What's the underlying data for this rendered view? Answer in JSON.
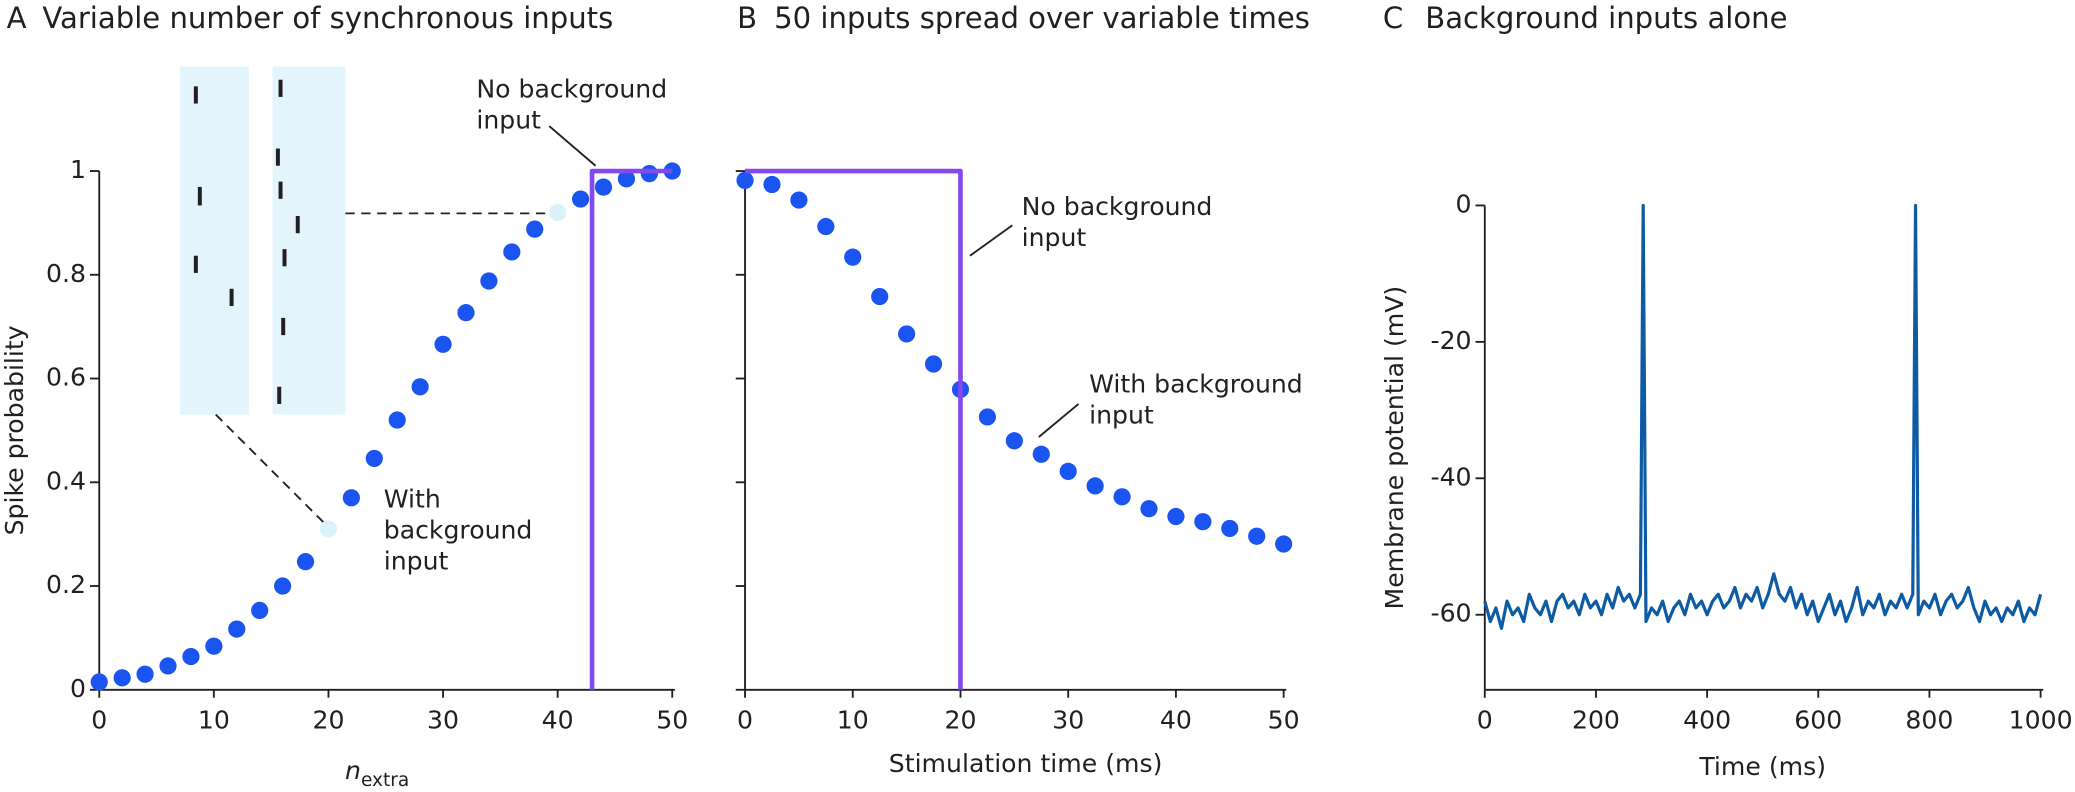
{
  "chart_data": [
    {
      "type": "scatter",
      "panel": "A",
      "title": "Variable number of synchronous inputs",
      "xlabel": "n",
      "xlabel_sub": "extra",
      "ylabel": "Spike probability",
      "xlim": [
        0,
        50
      ],
      "ylim": [
        0,
        1
      ],
      "xticks": [
        0,
        10,
        20,
        30,
        40,
        50
      ],
      "yticks": [
        0,
        0.2,
        0.4,
        0.6,
        0.8,
        1
      ],
      "series": [
        {
          "kind": "scatter",
          "color": "#1a55f2",
          "point_colors": [
            "#1a55f2",
            "#1a55f2",
            "#1a55f2",
            "#1a55f2",
            "#1a55f2",
            "#1a55f2",
            "#1a55f2",
            "#1a55f2",
            "#1a55f2",
            "#1a55f2",
            "#dcf2fb",
            "#1a55f2",
            "#1a55f2",
            "#1a55f2",
            "#1a55f2",
            "#1a55f2",
            "#1a55f2",
            "#1a55f2",
            "#1a55f2",
            "#1a55f2",
            "#dcf2fb",
            "#1a55f2",
            "#1a55f2",
            "#1a55f2",
            "#1a55f2",
            "#1a55f2"
          ],
          "x": [
            0,
            2,
            4,
            6,
            8,
            10,
            12,
            14,
            16,
            18,
            20,
            22,
            24,
            26,
            28,
            30,
            32,
            34,
            36,
            38,
            40,
            42,
            44,
            46,
            48,
            50
          ],
          "values": [
            0.015,
            0.023,
            0.03,
            0.046,
            0.064,
            0.084,
            0.117,
            0.153,
            0.2,
            0.247,
            0.31,
            0.37,
            0.446,
            0.52,
            0.584,
            0.666,
            0.727,
            0.788,
            0.844,
            0.888,
            0.92,
            0.946,
            0.969,
            0.985,
            0.995,
            1.0
          ]
        },
        {
          "kind": "line",
          "color": "#8348ee",
          "x": [
            43,
            43,
            50
          ],
          "values": [
            0,
            1,
            1
          ]
        }
      ],
      "annotations": [
        {
          "lines": [
            "No background",
            "input"
          ]
        },
        {
          "lines": [
            "With",
            "background",
            "input"
          ]
        }
      ]
    },
    {
      "type": "scatter",
      "panel": "B",
      "title": "50 inputs spread over variable times",
      "xlabel": "Stimulation time (ms)",
      "ytick_labels": false,
      "xlim": [
        0,
        50
      ],
      "ylim": [
        0,
        1
      ],
      "xticks": [
        0,
        10,
        20,
        30,
        40,
        50
      ],
      "yticks": [
        0,
        0.2,
        0.4,
        0.6,
        0.8,
        1
      ],
      "series": [
        {
          "kind": "scatter",
          "color": "#1a55f2",
          "x": [
            0,
            2.5,
            5,
            7.5,
            10,
            12.5,
            15,
            17.5,
            20,
            22.5,
            25,
            27.5,
            30,
            32.5,
            35,
            37.5,
            40,
            42.5,
            45,
            47.5,
            50
          ],
          "values": [
            0.982,
            0.974,
            0.944,
            0.893,
            0.834,
            0.758,
            0.686,
            0.628,
            0.579,
            0.526,
            0.48,
            0.454,
            0.421,
            0.393,
            0.372,
            0.349,
            0.334,
            0.324,
            0.311,
            0.296,
            0.281
          ]
        },
        {
          "kind": "line",
          "color": "#8348ee",
          "x": [
            0,
            20,
            20
          ],
          "values": [
            1,
            1,
            0
          ]
        }
      ],
      "annotations": [
        {
          "lines": [
            "No background",
            "input"
          ]
        },
        {
          "lines": [
            "With background",
            "input"
          ]
        }
      ]
    },
    {
      "type": "line",
      "panel": "C",
      "title": "Background inputs alone",
      "xlabel": "Time (ms)",
      "ylabel": "Membrane potential (mV)",
      "xlim": [
        0,
        1000
      ],
      "ylim": [
        -71,
        0
      ],
      "xticks": [
        0,
        200,
        400,
        600,
        800,
        1000
      ],
      "yticks": [
        0,
        -20,
        -40,
        -60
      ],
      "series": [
        {
          "kind": "line",
          "color": "#0d5ba3",
          "x": [
            0,
            10,
            20,
            30,
            40,
            50,
            60,
            70,
            80,
            90,
            100,
            110,
            120,
            130,
            140,
            150,
            160,
            170,
            180,
            190,
            200,
            210,
            220,
            230,
            240,
            250,
            260,
            270,
            280,
            285,
            290,
            300,
            310,
            320,
            330,
            340,
            350,
            360,
            370,
            380,
            390,
            400,
            410,
            420,
            430,
            440,
            450,
            460,
            470,
            480,
            490,
            500,
            510,
            520,
            530,
            540,
            550,
            560,
            570,
            580,
            590,
            600,
            610,
            620,
            630,
            640,
            650,
            660,
            670,
            680,
            690,
            700,
            710,
            720,
            730,
            740,
            750,
            760,
            770,
            775,
            780,
            790,
            800,
            810,
            820,
            830,
            840,
            850,
            860,
            870,
            880,
            890,
            900,
            910,
            920,
            930,
            940,
            950,
            960,
            970,
            980,
            990,
            1000
          ],
          "values": [
            -58,
            -61,
            -59,
            -62,
            -58,
            -60,
            -59,
            -61,
            -57,
            -59,
            -60,
            -58,
            -61,
            -58,
            -57,
            -59,
            -58,
            -60,
            -57,
            -59,
            -58,
            -60,
            -57,
            -59,
            -56,
            -58,
            -57,
            -59,
            -57,
            0,
            -61,
            -59,
            -60,
            -58,
            -61,
            -59,
            -58,
            -60,
            -57,
            -59,
            -58,
            -60,
            -58,
            -57,
            -59,
            -58,
            -56,
            -59,
            -57,
            -58,
            -56,
            -59,
            -57,
            -54,
            -57,
            -58,
            -56,
            -59,
            -57,
            -60,
            -58,
            -61,
            -59,
            -57,
            -60,
            -58,
            -61,
            -59,
            -56,
            -60,
            -58,
            -59,
            -57,
            -60,
            -58,
            -59,
            -57,
            -59,
            -57,
            0,
            -60,
            -58,
            -59,
            -57,
            -60,
            -58,
            -57,
            -59,
            -58,
            -56,
            -59,
            -61,
            -58,
            -60,
            -59,
            -61,
            -59,
            -60,
            -58,
            -61,
            -59,
            -60,
            -57
          ]
        }
      ]
    }
  ]
}
